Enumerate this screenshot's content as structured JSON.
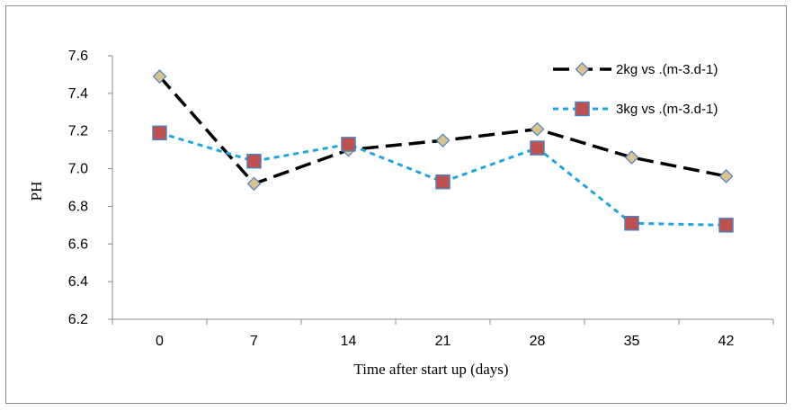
{
  "chart_data": {
    "type": "line",
    "title": "",
    "xlabel": "Time after start up (days)",
    "ylabel": "PH",
    "categories": [
      "0",
      "7",
      "14",
      "21",
      "28",
      "35",
      "42"
    ],
    "ylim": [
      6.2,
      7.6
    ],
    "yticks": [
      "6.2",
      "6.4",
      "6.6",
      "6.8",
      "7.0",
      "7.2",
      "7.4",
      "7.6"
    ],
    "grid": false,
    "legend_position": "top-right",
    "series": [
      {
        "name": "2kg vs .(m-3.d-1)",
        "values": [
          7.49,
          6.92,
          7.1,
          7.15,
          7.21,
          7.06,
          6.96
        ],
        "line_color": "#000000",
        "line_style": "long-dash",
        "marker": "diamond",
        "marker_fill": "#d9c38f",
        "marker_stroke": "#4f81bd"
      },
      {
        "name": "3kg vs .(m-3.d-1)",
        "values": [
          7.19,
          7.04,
          7.13,
          6.93,
          7.11,
          6.71,
          6.7
        ],
        "line_color": "#1fa5e0",
        "line_style": "short-dash",
        "marker": "square",
        "marker_fill": "#c0504d",
        "marker_stroke": "#4f81bd"
      }
    ]
  }
}
